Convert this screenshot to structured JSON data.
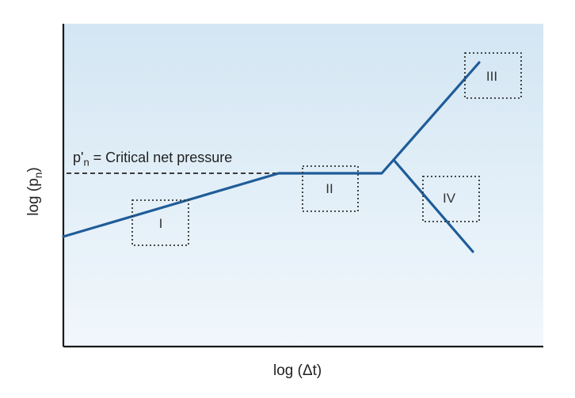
{
  "figure": {
    "x_axis_label": "log (Δt)",
    "y_axis_label_main": "log (p",
    "y_axis_label_sub": "n",
    "y_axis_label_end": ")",
    "critical_label_main": "p'",
    "critical_label_sub": "n",
    "critical_label_end": " = Critical net pressure",
    "regions": [
      {
        "label": "I"
      },
      {
        "label": "II"
      },
      {
        "label": "III"
      },
      {
        "label": "IV"
      }
    ]
  },
  "colors": {
    "curve": "#1f5c99",
    "background_top": "#d3e6f3",
    "background_bottom": "#f1f7fc",
    "axis": "#1a1a1a",
    "dashed_line": "#222222"
  }
}
